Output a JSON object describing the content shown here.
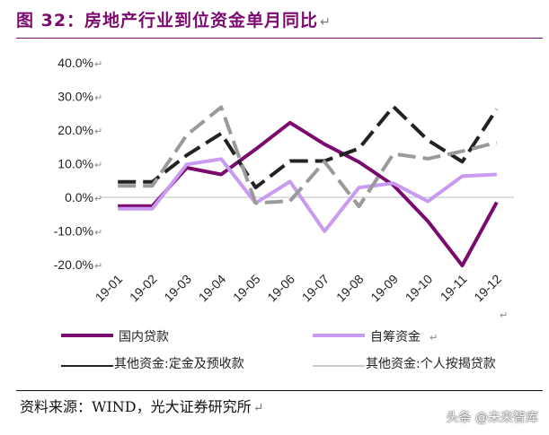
{
  "title": "图 32：房地产行业到位资金单月同比",
  "source": "资料来源：WIND，光大证券研究所",
  "watermark": "头条 @未来智库",
  "chart_data": {
    "type": "line",
    "categories": [
      "19-01",
      "19-02",
      "19-03",
      "19-04",
      "19-05",
      "19-06",
      "19-07",
      "19-08",
      "19-09",
      "19-10",
      "19-11",
      "19-12"
    ],
    "ylim": [
      -0.2,
      0.4
    ],
    "yticks": [
      "-20.0%",
      "-10.0%",
      "0.0%",
      "10.0%",
      "20.0%",
      "30.0%",
      "40.0%"
    ],
    "series": [
      {
        "name": "国内贷款",
        "color": "#7a0a6e",
        "dash": "",
        "values": [
          -0.026,
          -0.026,
          0.088,
          0.068,
          0.143,
          0.222,
          0.158,
          0.105,
          0.036,
          -0.071,
          -0.203,
          -0.015
        ]
      },
      {
        "name": "自筹资金",
        "color": "#c89af0",
        "dash": "",
        "values": [
          -0.034,
          -0.034,
          0.098,
          0.114,
          -0.017,
          0.047,
          -0.101,
          0.029,
          0.042,
          -0.012,
          0.063,
          0.068
        ]
      },
      {
        "name": "其他资金:定金及预收款",
        "color": "#222222",
        "dash": "20 8",
        "values": [
          0.046,
          0.046,
          0.125,
          0.19,
          0.029,
          0.108,
          0.108,
          0.145,
          0.27,
          0.17,
          0.106,
          0.262
        ]
      },
      {
        "name": "其他资金:个人按揭贷款",
        "color": "#9a9a9a",
        "dash": "20 8",
        "values": [
          0.034,
          0.034,
          0.185,
          0.268,
          -0.017,
          -0.011,
          0.106,
          -0.027,
          0.129,
          0.115,
          0.137,
          0.163
        ]
      }
    ]
  }
}
